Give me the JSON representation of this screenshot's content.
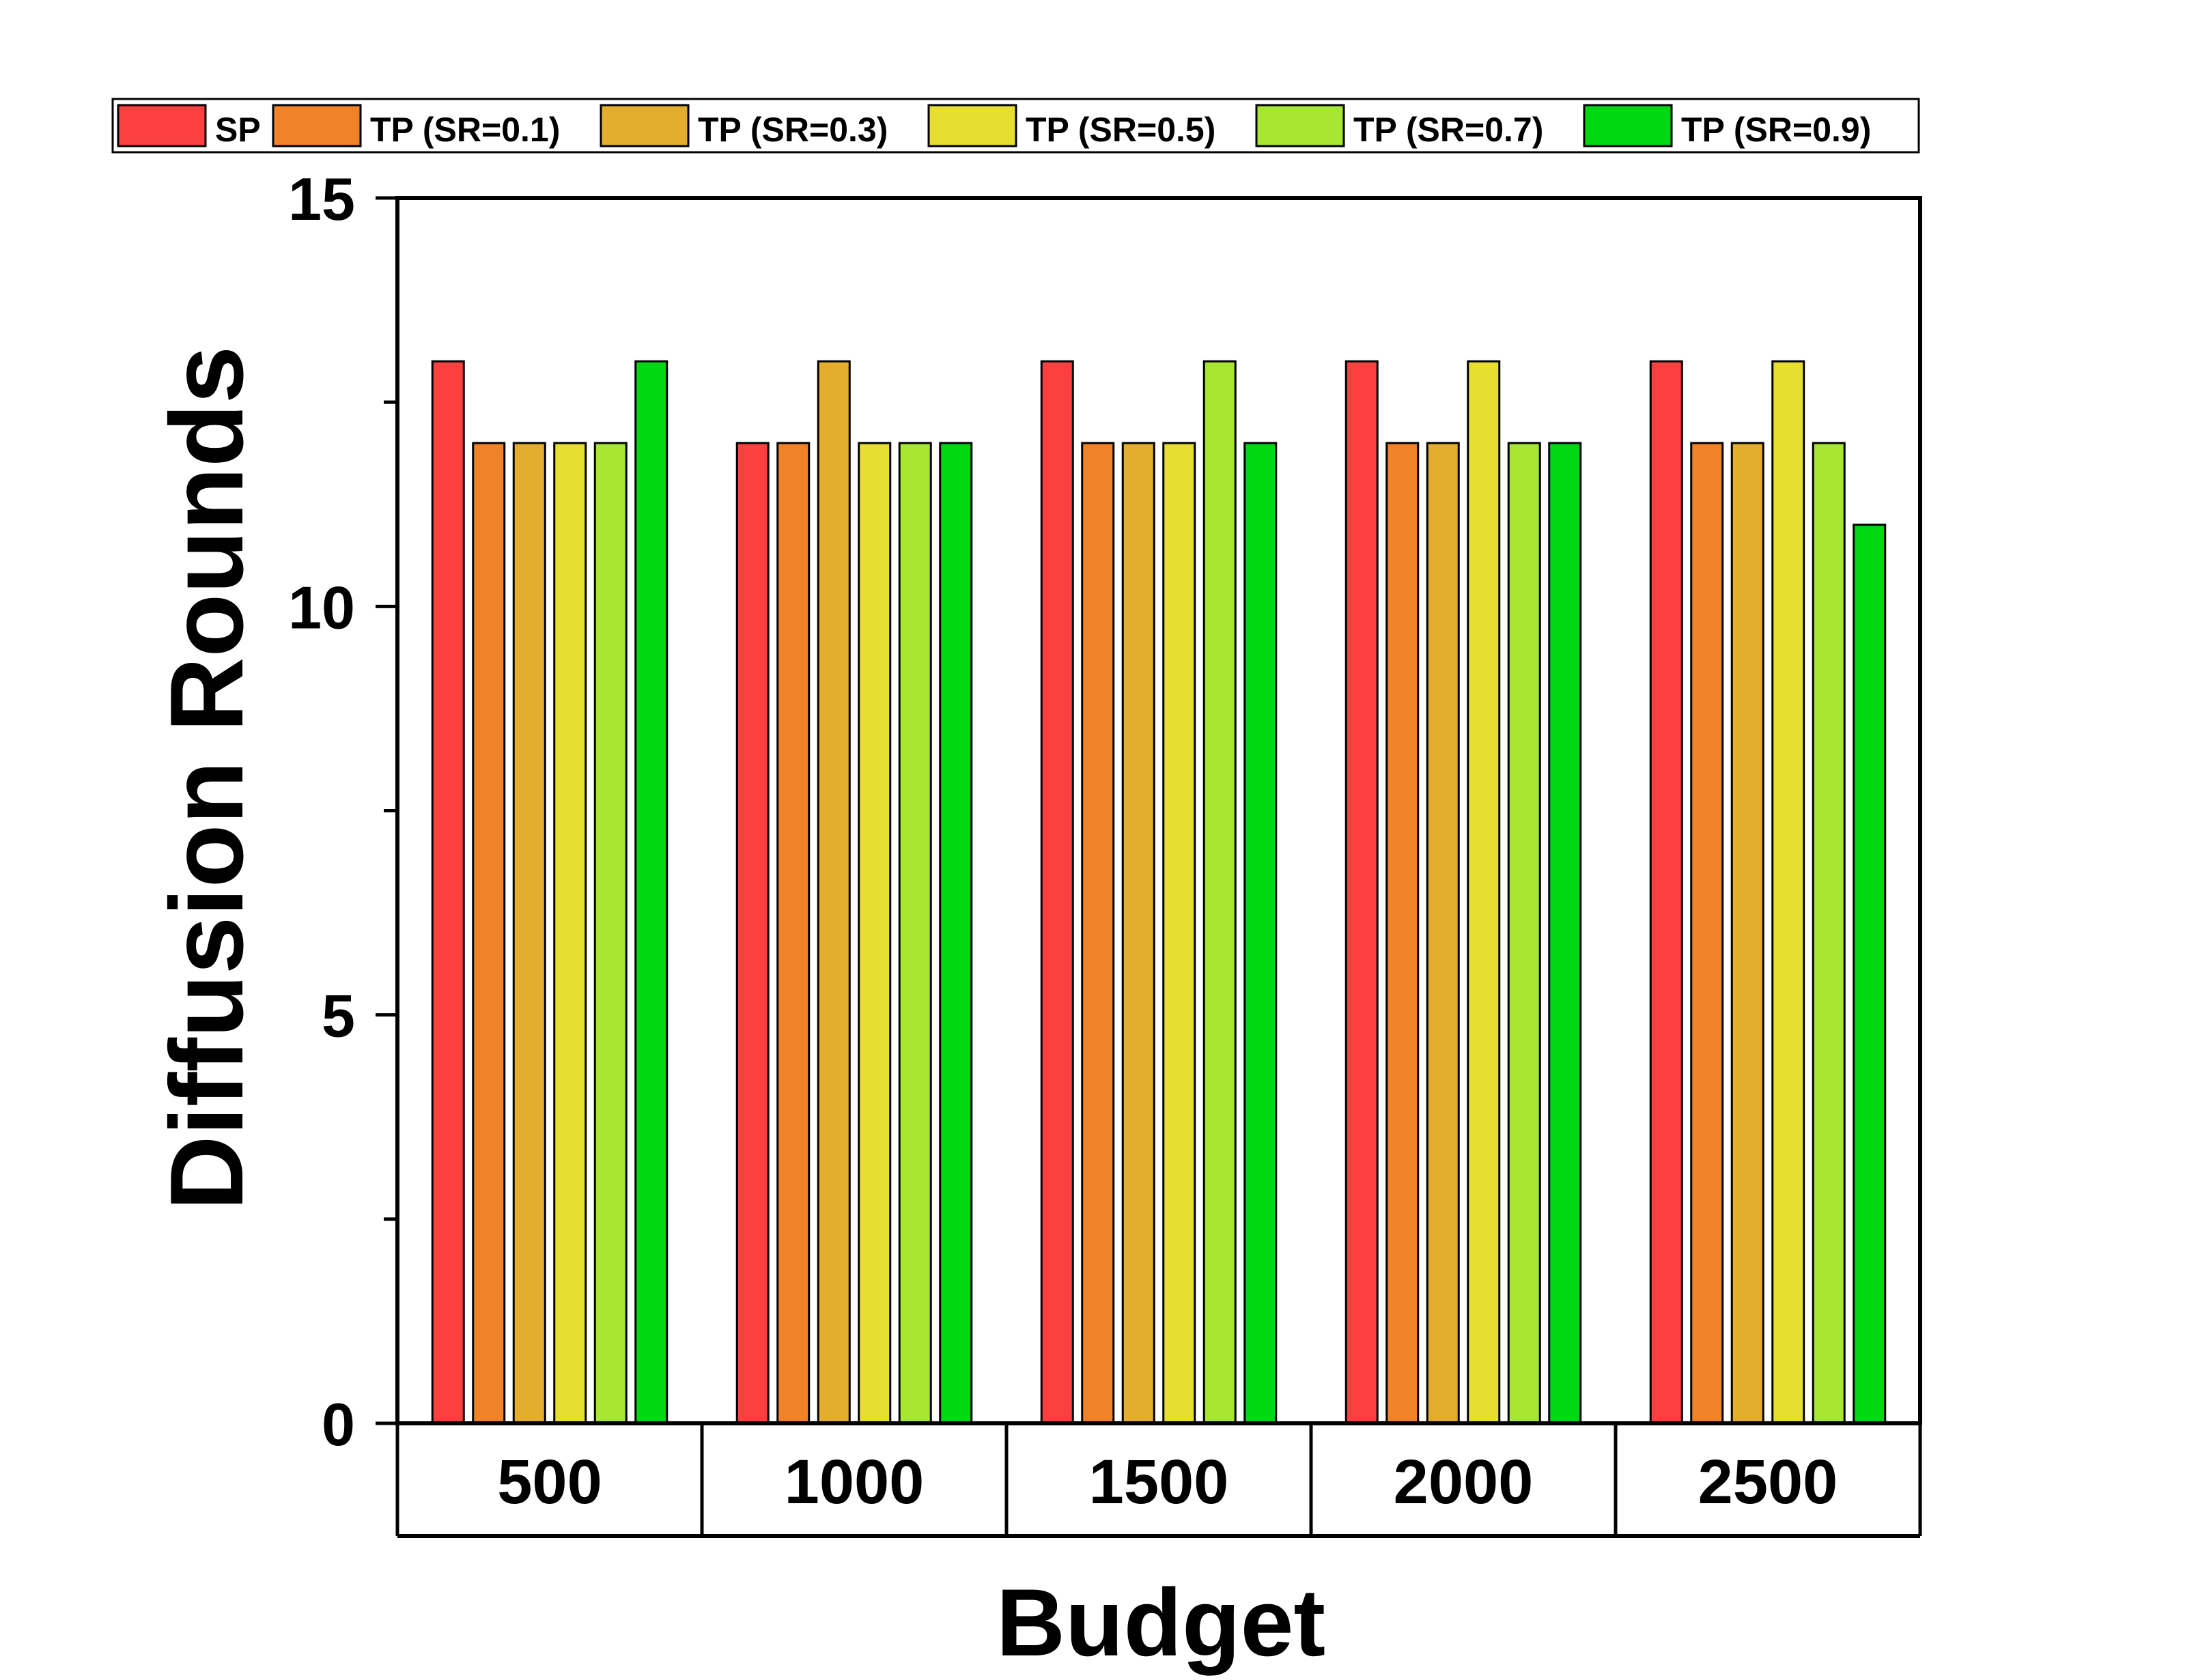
{
  "chart_data": {
    "type": "bar",
    "xlabel": "Budget",
    "ylabel": "Diffusion Rounds",
    "ylim": [
      0,
      15
    ],
    "yticks": [
      0,
      5,
      10,
      15
    ],
    "categories": [
      "500",
      "1000",
      "1500",
      "2000",
      "2500"
    ],
    "legend_position": "top",
    "grid": false,
    "series": [
      {
        "name": "SP",
        "color": "#fc3f3f",
        "values": [
          13,
          12,
          13,
          13,
          13
        ]
      },
      {
        "name": "TP (SR=0.1)",
        "color": "#f08228",
        "values": [
          12,
          12,
          12,
          12,
          12
        ]
      },
      {
        "name": "TP (SR=0.3)",
        "color": "#e5ad2e",
        "values": [
          12,
          13,
          12,
          12,
          12
        ]
      },
      {
        "name": "TP (SR=0.5)",
        "color": "#e7de32",
        "values": [
          12,
          12,
          12,
          13,
          13
        ]
      },
      {
        "name": "TP (SR=0.7)",
        "color": "#a7e633",
        "values": [
          12,
          12,
          13,
          12,
          12
        ]
      },
      {
        "name": "TP (SR=0.9)",
        "color": "#00d714",
        "values": [
          13,
          12,
          12,
          12,
          11
        ]
      }
    ]
  }
}
